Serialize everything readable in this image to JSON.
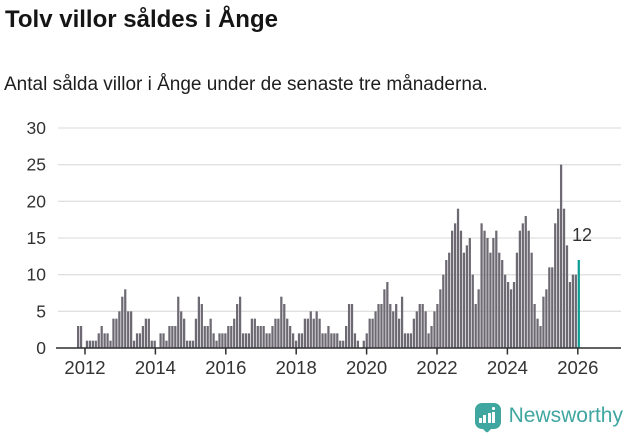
{
  "header": {
    "title": "Tolv villor såldes i Ånge",
    "subtitle": "Antal sålda villor i Ånge under de senaste tre månaderna."
  },
  "chart_data": {
    "type": "bar",
    "title": "Tolv villor såldes i Ånge",
    "subtitle": "Antal sålda villor i Ånge under de senaste tre månaderna.",
    "xlabel": "",
    "ylabel": "",
    "ylim": [
      0,
      30
    ],
    "yticks": [
      0,
      5,
      10,
      15,
      20,
      25,
      30
    ],
    "xtick_years": [
      "2012",
      "2014",
      "2016",
      "2018",
      "2020",
      "2022",
      "2024",
      "2026"
    ],
    "grid": "horizontal",
    "legend": "none",
    "start_month": "2011-11",
    "end_month": "2026-01",
    "frequency": "monthly",
    "values": [
      3,
      3,
      0,
      1,
      1,
      1,
      1,
      2,
      3,
      2,
      2,
      1,
      4,
      4,
      5,
      7,
      8,
      5,
      5,
      1,
      2,
      2,
      3,
      4,
      4,
      1,
      1,
      0,
      2,
      2,
      1,
      3,
      3,
      3,
      7,
      5,
      4,
      1,
      1,
      1,
      4,
      7,
      6,
      3,
      3,
      4,
      2,
      1,
      2,
      2,
      2,
      3,
      3,
      4,
      6,
      7,
      2,
      2,
      2,
      4,
      4,
      3,
      3,
      3,
      2,
      2,
      3,
      4,
      4,
      7,
      6,
      4,
      3,
      2,
      1,
      2,
      2,
      4,
      4,
      5,
      4,
      5,
      4,
      2,
      2,
      3,
      2,
      2,
      2,
      1,
      1,
      3,
      6,
      6,
      2,
      1,
      0,
      1,
      2,
      4,
      4,
      5,
      6,
      6,
      8,
      9,
      6,
      5,
      6,
      4,
      7,
      2,
      2,
      2,
      4,
      5,
      6,
      6,
      5,
      2,
      3,
      5,
      6,
      8,
      10,
      12,
      13,
      16,
      17,
      19,
      16,
      13,
      14,
      15,
      10,
      6,
      8,
      17,
      16,
      15,
      13,
      15,
      16,
      13,
      12,
      10,
      9,
      8,
      9,
      13,
      16,
      17,
      18,
      16,
      13,
      6,
      4,
      3,
      7,
      8,
      11,
      11,
      17,
      19,
      25,
      19,
      14,
      9,
      10,
      10,
      12
    ],
    "highlight": {
      "index": 170,
      "value": 12,
      "label": "12",
      "color": "#0B9D94"
    },
    "bar_color": "#6E6A73",
    "colors": {
      "grid": "#E0E0E0",
      "axis": "#2F2F2F",
      "tick_label": "#333333",
      "annotation": "#333333"
    }
  },
  "annotation": {
    "text": "12"
  },
  "logo": {
    "text": "Newsworthy",
    "color": "#3FA6A0"
  }
}
